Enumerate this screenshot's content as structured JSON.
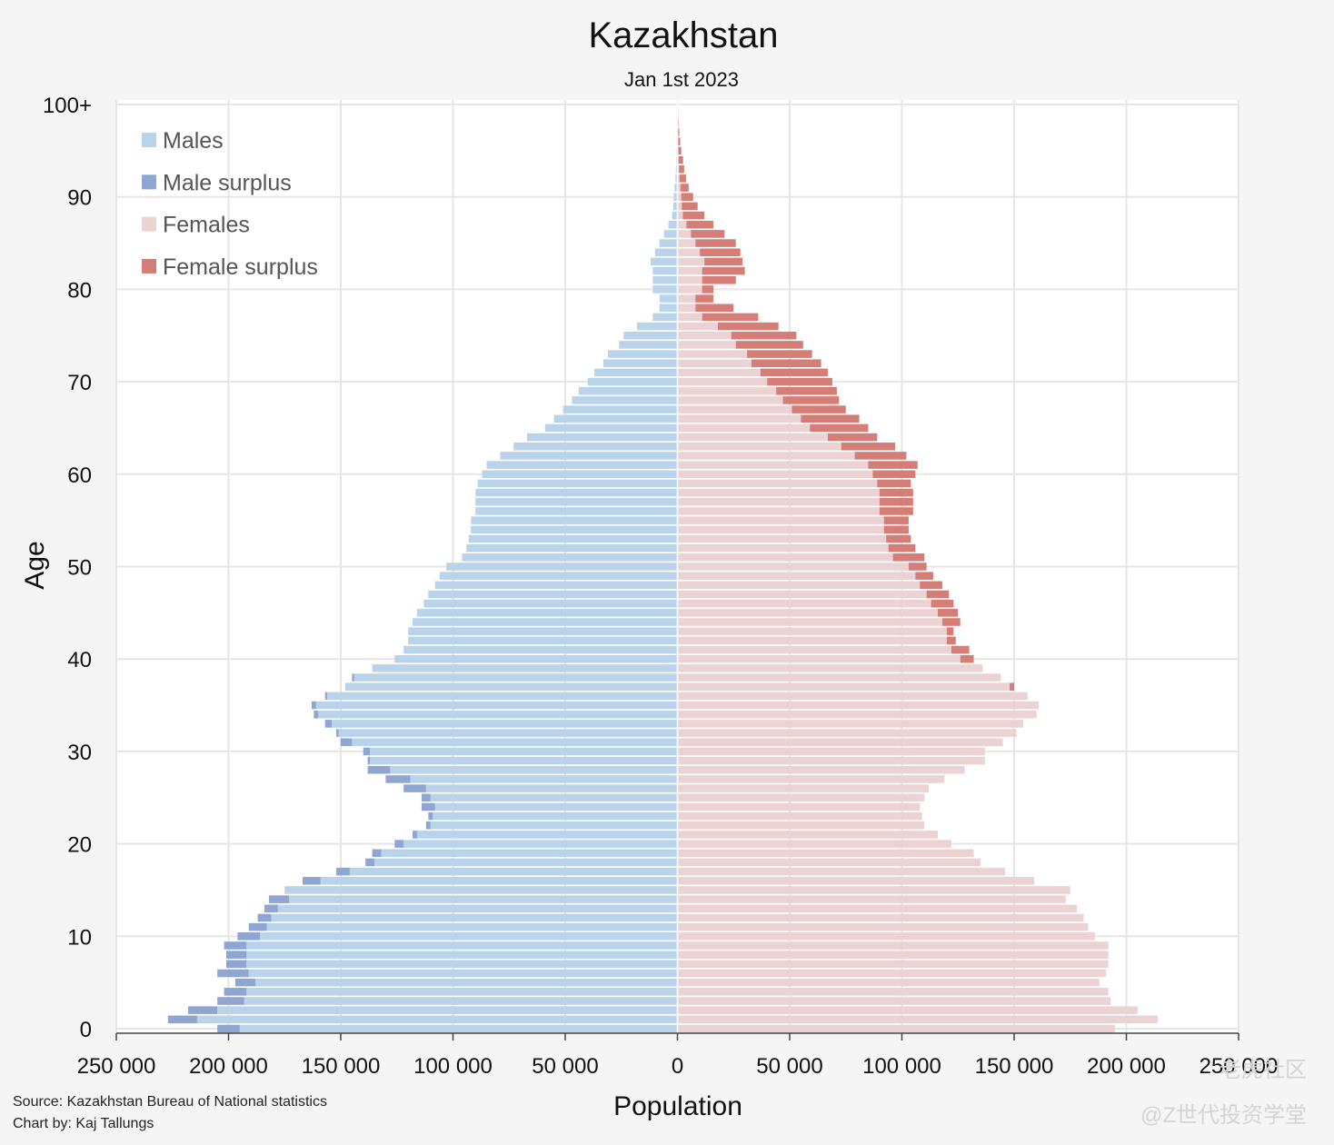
{
  "chart_data": {
    "type": "bar",
    "orientation": "horizontal",
    "title": "Kazakhstan",
    "subtitle": "Jan 1st 2023",
    "xlabel": "Population",
    "ylabel": "Age",
    "xlim": [
      -250000,
      250000
    ],
    "x_ticks": [
      -250000,
      -200000,
      -150000,
      -100000,
      -50000,
      0,
      50000,
      100000,
      150000,
      200000,
      250000
    ],
    "x_tick_labels": [
      "250 000",
      "200 000",
      "150 000",
      "100 000",
      "50 000",
      "0",
      "50 000",
      "100 000",
      "150 000",
      "200 000",
      "250 000"
    ],
    "y_ticks": [
      0,
      10,
      20,
      30,
      40,
      50,
      60,
      70,
      80,
      90,
      100
    ],
    "y_tick_labels": [
      "0",
      "10",
      "20",
      "30",
      "40",
      "50",
      "60",
      "70",
      "80",
      "90",
      "100+"
    ],
    "ages": [
      0,
      1,
      2,
      3,
      4,
      5,
      6,
      7,
      8,
      9,
      10,
      11,
      12,
      13,
      14,
      15,
      16,
      17,
      18,
      19,
      20,
      21,
      22,
      23,
      24,
      25,
      26,
      27,
      28,
      29,
      30,
      31,
      32,
      33,
      34,
      35,
      36,
      37,
      38,
      39,
      40,
      41,
      42,
      43,
      44,
      45,
      46,
      47,
      48,
      49,
      50,
      51,
      52,
      53,
      54,
      55,
      56,
      57,
      58,
      59,
      60,
      61,
      62,
      63,
      64,
      65,
      66,
      67,
      68,
      69,
      70,
      71,
      72,
      73,
      74,
      75,
      76,
      77,
      78,
      79,
      80,
      81,
      82,
      83,
      84,
      85,
      86,
      87,
      88,
      89,
      90,
      91,
      92,
      93,
      94,
      95,
      96,
      97,
      98,
      99,
      100
    ],
    "males": [
      205000,
      227000,
      218000,
      205000,
      202000,
      197000,
      205000,
      201000,
      201000,
      202000,
      196000,
      191000,
      187000,
      184000,
      182000,
      175000,
      167000,
      152000,
      139000,
      136000,
      126000,
      118000,
      112000,
      111000,
      114000,
      114000,
      122000,
      130000,
      138000,
      138000,
      140000,
      150000,
      152000,
      157000,
      162000,
      163000,
      157000,
      148000,
      145000,
      136000,
      126000,
      122000,
      120000,
      120000,
      118000,
      116000,
      113000,
      111000,
      108000,
      106000,
      103000,
      96000,
      94000,
      93000,
      92000,
      92000,
      90000,
      90000,
      90000,
      89000,
      87000,
      85000,
      79000,
      73000,
      67000,
      59000,
      55000,
      51000,
      47000,
      44000,
      40000,
      37000,
      33000,
      31000,
      26000,
      24000,
      18000,
      11000,
      8000,
      8000,
      11000,
      11000,
      11000,
      12000,
      10000,
      8000,
      6000,
      4000,
      2400,
      1900,
      1700,
      1300,
      900,
      700,
      500,
      400,
      300,
      200,
      100,
      60,
      40
    ],
    "females": [
      195000,
      214000,
      205000,
      193000,
      192000,
      188000,
      191000,
      192000,
      192000,
      192000,
      186000,
      183000,
      181000,
      178000,
      173000,
      175000,
      159000,
      146000,
      135000,
      132000,
      122000,
      116000,
      110000,
      109000,
      108000,
      110000,
      112000,
      119000,
      128000,
      137000,
      137000,
      145000,
      151000,
      154000,
      160000,
      161000,
      156000,
      150000,
      144000,
      136000,
      132000,
      130000,
      124000,
      123000,
      126000,
      125000,
      123000,
      121000,
      118000,
      114000,
      111000,
      110000,
      106000,
      104000,
      103000,
      103000,
      105000,
      105000,
      105000,
      104000,
      106000,
      107000,
      102000,
      97000,
      89000,
      85000,
      81000,
      75000,
      72000,
      71000,
      69000,
      67000,
      64000,
      60000,
      56000,
      53000,
      45000,
      36000,
      25000,
      16000,
      16000,
      26000,
      30000,
      29000,
      28000,
      26000,
      21000,
      16000,
      12000,
      9000,
      7000,
      5000,
      3800,
      3000,
      2500,
      1700,
      1200,
      800,
      500,
      300,
      150
    ],
    "legend": [
      {
        "label": "Males",
        "color": "#b9d4ea"
      },
      {
        "label": "Male surplus",
        "color": "#8ea6d1"
      },
      {
        "label": "Females",
        "color": "#ecd3d3"
      },
      {
        "label": "Female surplus",
        "color": "#d57d77"
      }
    ],
    "legend_placement": "top-left",
    "grid": true
  },
  "footer": {
    "source": "Source: Kazakhstan Bureau of National statistics",
    "credit": "Chart by: Kaj Tallungs"
  },
  "watermark": {
    "line1": "老虎社区",
    "line2": "@Z世代投资学堂"
  }
}
